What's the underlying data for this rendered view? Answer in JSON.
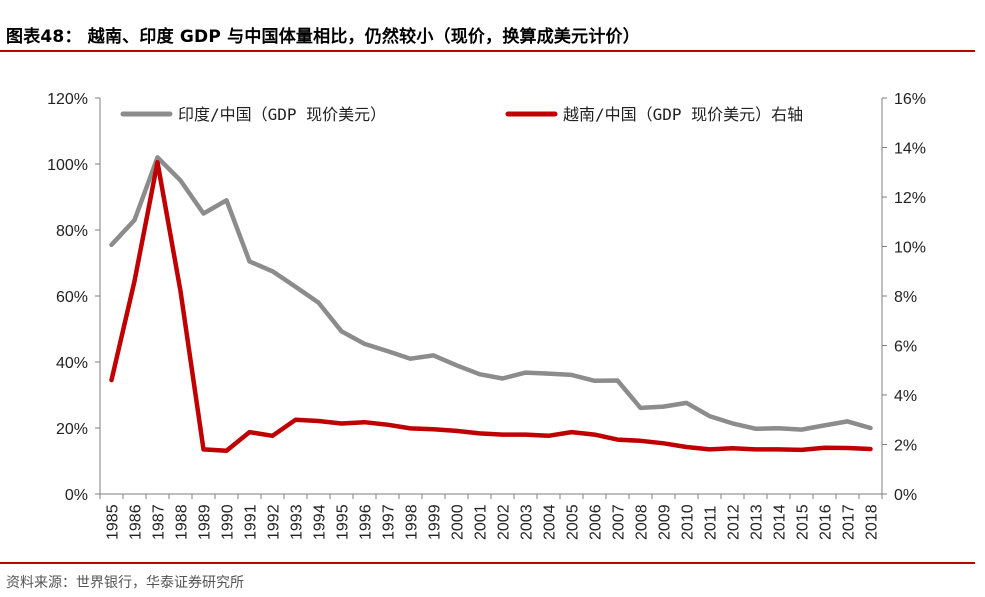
{
  "figure": {
    "title": "图表48：  越南、印度 GDP 与中国体量相比，仍然较小（现价，换算成美元计价）",
    "source": "资料来源：世界银行，华泰证券研究所"
  },
  "colors": {
    "rule": "#c00000",
    "india_series": "#8c8c8c",
    "vietnam_series": "#c00000",
    "axis": "#7f7f7f"
  },
  "chart_data": {
    "type": "line",
    "title": "",
    "x": [
      "1985",
      "1986",
      "1987",
      "1988",
      "1989",
      "1990",
      "1991",
      "1992",
      "1993",
      "1994",
      "1995",
      "1996",
      "1997",
      "1998",
      "1999",
      "2000",
      "2001",
      "2002",
      "2003",
      "2004",
      "2005",
      "2006",
      "2007",
      "2008",
      "2009",
      "2010",
      "2011",
      "2012",
      "2013",
      "2014",
      "2015",
      "2016",
      "2017",
      "2018"
    ],
    "y_left": {
      "range": [
        0,
        120
      ],
      "ticks": [
        0,
        20,
        40,
        60,
        80,
        100,
        120
      ],
      "tick_labels": [
        "0%",
        "20%",
        "40%",
        "60%",
        "80%",
        "100%",
        "120%"
      ]
    },
    "y_right": {
      "range": [
        0,
        16
      ],
      "ticks": [
        0,
        2,
        4,
        6,
        8,
        10,
        12,
        14,
        16
      ],
      "tick_labels": [
        "0%",
        "2%",
        "4%",
        "6%",
        "8%",
        "10%",
        "12%",
        "14%",
        "16%"
      ]
    },
    "grid": false,
    "legend_position": "top",
    "series": [
      {
        "name": "印度/中国（GDP 现价美元）",
        "axis": "left",
        "color": "#8c8c8c",
        "values": [
          75.5,
          83,
          102,
          95,
          85,
          89,
          70.5,
          67.5,
          62.8,
          58,
          49.3,
          45.5,
          43.3,
          41,
          42,
          39,
          36.3,
          35,
          36.8,
          36.5,
          36.1,
          34.3,
          34.4,
          26.1,
          26.5,
          27.6,
          23.6,
          21.4,
          19.8,
          19.9,
          19.5,
          20.8,
          22,
          20
        ]
      },
      {
        "name": "越南/中国（GDP 现价美元）右轴",
        "axis": "right",
        "color": "#c00000",
        "values": [
          4.6,
          8.6,
          13.4,
          8.2,
          1.8,
          1.75,
          2.5,
          2.35,
          3.0,
          2.95,
          2.85,
          2.9,
          2.8,
          2.65,
          2.62,
          2.55,
          2.45,
          2.4,
          2.4,
          2.35,
          2.5,
          2.4,
          2.2,
          2.15,
          2.05,
          1.9,
          1.8,
          1.85,
          1.8,
          1.8,
          1.78,
          1.87,
          1.86,
          1.82
        ]
      }
    ]
  }
}
